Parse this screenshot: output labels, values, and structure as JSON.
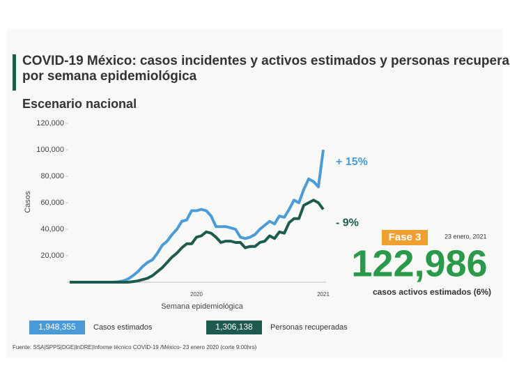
{
  "chart_data": {
    "type": "line",
    "title": "COVID-19 México: casos incidentes y activos estimados y personas recuperadas por semana epidemiológica",
    "subtitle": "Escenario nacional",
    "x_label": "Semana epidemiológica",
    "y_label": "Casos",
    "categories": [
      null,
      null,
      null,
      null,
      null,
      null,
      null,
      null,
      null,
      null,
      null,
      null,
      null,
      null,
      null,
      null,
      null,
      null,
      null,
      null,
      null,
      null,
      null,
      null,
      null,
      null,
      "2020",
      null,
      null,
      null,
      null,
      null,
      null,
      null,
      null,
      null,
      null,
      null,
      null,
      null,
      null,
      null,
      null,
      null,
      null,
      null,
      null,
      null,
      null,
      null,
      null,
      null,
      "2021"
    ],
    "ylim": [
      0,
      120000
    ],
    "yticks": [
      {
        "value": 20000,
        "label": "20,000"
      },
      {
        "value": 40000,
        "label": "40,000"
      },
      {
        "value": 60000,
        "label": "60,000"
      },
      {
        "value": 80000,
        "label": "80,000"
      },
      {
        "value": 100000,
        "label": "100,000"
      },
      {
        "value": 120000,
        "label": "120,000"
      }
    ],
    "grid": false,
    "series": [
      {
        "name": "Casos estimados",
        "color": "#4a9bd8",
        "total": "1,948,355",
        "change": "+ 15%",
        "values": [
          0,
          0,
          0,
          0,
          0,
          0,
          0,
          0,
          0,
          0,
          300,
          1000,
          2500,
          5000,
          8000,
          12000,
          15000,
          17000,
          22000,
          28000,
          31000,
          36000,
          40000,
          46000,
          47000,
          54000,
          54000,
          55000,
          54000,
          50000,
          42000,
          42000,
          42000,
          41000,
          40000,
          34000,
          33000,
          34000,
          36000,
          40000,
          43000,
          46000,
          44000,
          50000,
          49000,
          55000,
          62000,
          60000,
          70000,
          78000,
          76000,
          72000,
          100000
        ]
      },
      {
        "name": "Personas recuperadas",
        "color": "#1e5b4f",
        "total": "1,306,138",
        "change": "- 9%",
        "values": [
          0,
          0,
          0,
          0,
          0,
          0,
          0,
          0,
          0,
          0,
          0,
          0,
          0,
          500,
          1000,
          2000,
          3000,
          5000,
          8000,
          11000,
          15000,
          19000,
          22000,
          26000,
          29000,
          29000,
          34000,
          35000,
          38000,
          37000,
          34000,
          30000,
          31000,
          31000,
          30000,
          30000,
          26000,
          27000,
          27000,
          30000,
          31000,
          35000,
          33000,
          38000,
          37000,
          45000,
          48000,
          48000,
          58000,
          60000,
          62000,
          60000,
          55000
        ]
      }
    ],
    "phase": "Fase 3",
    "date": "23 enero, 2021",
    "active_cases": "122,986",
    "active_label": "casos activos estimados (6%)",
    "source": "Fuente: SSA|SPPS|DGE|InDRE|Informe técnico COVID-19 /México- 23 enero 2020 (corte 9:00hrs)"
  }
}
